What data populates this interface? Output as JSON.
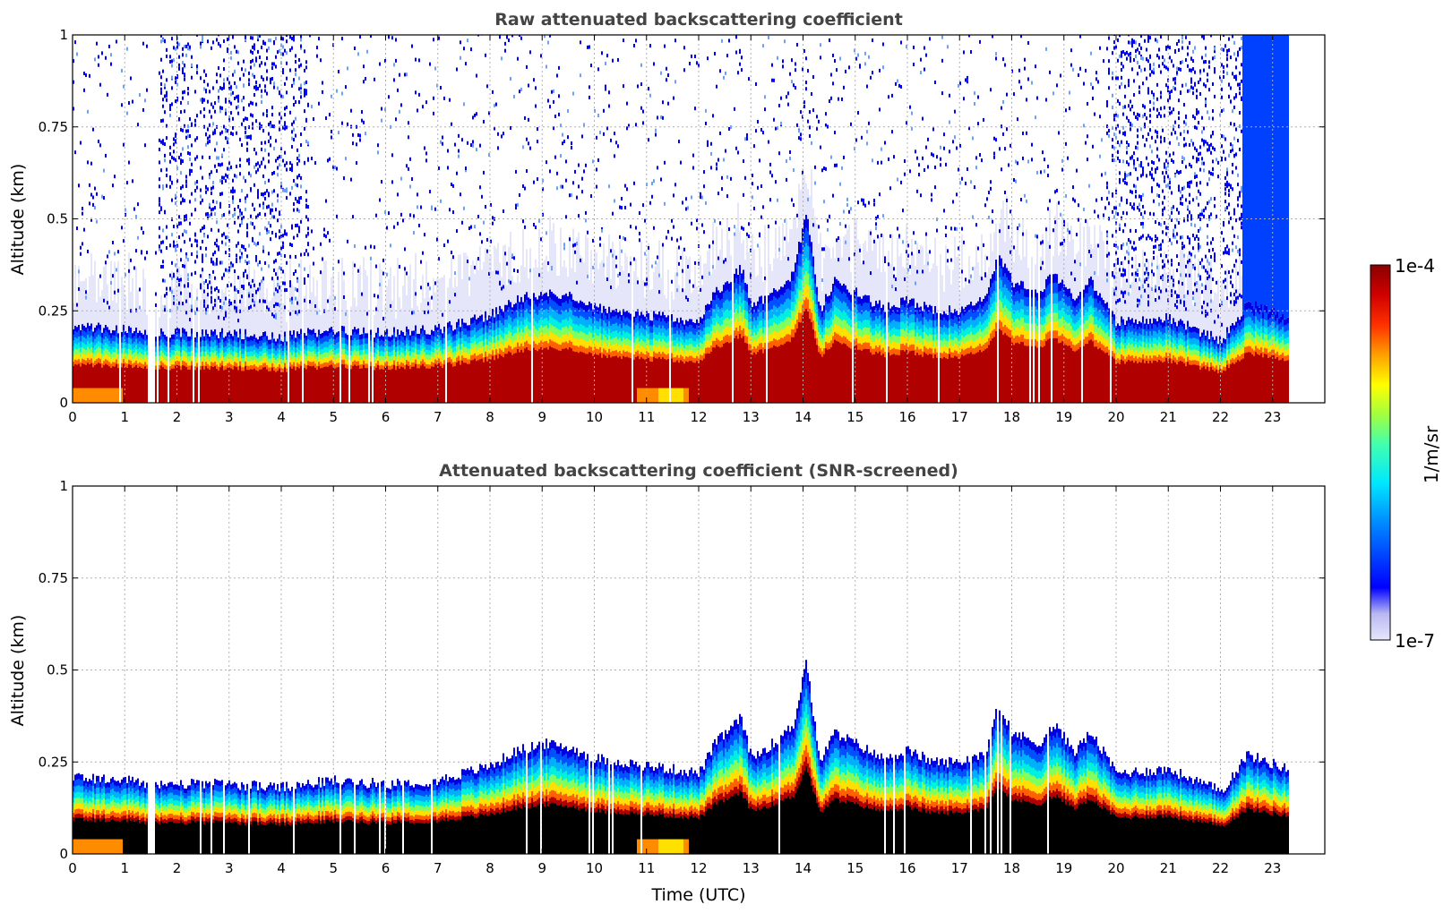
{
  "chart_data": [
    {
      "type": "heatmap",
      "title": "Raw attenuated backscattering coefficient",
      "xlabel": "",
      "ylabel": "Altitude (km)",
      "xlim": [
        0,
        24
      ],
      "ylim": [
        0,
        1
      ],
      "x_ticks": [
        "0",
        "1",
        "2",
        "3",
        "4",
        "5",
        "6",
        "7",
        "8",
        "9",
        "10",
        "11",
        "12",
        "13",
        "14",
        "15",
        "16",
        "17",
        "18",
        "19",
        "20",
        "21",
        "22",
        "23"
      ],
      "y_ticks": [
        "0",
        "0.25",
        "0.5",
        "0.75",
        "1"
      ],
      "grid": true,
      "data_end_hour": 23.3,
      "layer_top_km": [
        [
          0,
          0.21
        ],
        [
          1,
          0.2
        ],
        [
          1.5,
          0.19
        ],
        [
          2,
          0.19
        ],
        [
          3,
          0.19
        ],
        [
          4,
          0.18
        ],
        [
          5,
          0.2
        ],
        [
          6,
          0.19
        ],
        [
          7,
          0.2
        ],
        [
          8,
          0.24
        ],
        [
          8.5,
          0.28
        ],
        [
          9,
          0.3
        ],
        [
          9.5,
          0.29
        ],
        [
          10,
          0.26
        ],
        [
          11,
          0.24
        ],
        [
          12,
          0.22
        ],
        [
          12.3,
          0.3
        ],
        [
          12.8,
          0.37
        ],
        [
          13,
          0.26
        ],
        [
          13.5,
          0.31
        ],
        [
          13.8,
          0.35
        ],
        [
          14.05,
          0.53
        ],
        [
          14.3,
          0.25
        ],
        [
          14.6,
          0.33
        ],
        [
          15,
          0.3
        ],
        [
          15.5,
          0.26
        ],
        [
          16,
          0.28
        ],
        [
          16.5,
          0.25
        ],
        [
          17,
          0.25
        ],
        [
          17.5,
          0.28
        ],
        [
          17.7,
          0.4
        ],
        [
          18,
          0.33
        ],
        [
          18.5,
          0.3
        ],
        [
          18.8,
          0.35
        ],
        [
          19.2,
          0.28
        ],
        [
          19.5,
          0.33
        ],
        [
          20,
          0.22
        ],
        [
          21,
          0.23
        ],
        [
          22,
          0.17
        ],
        [
          22.5,
          0.27
        ],
        [
          23.3,
          0.23
        ]
      ],
      "noise_bands_hours": [
        [
          1.6,
          4.5
        ],
        [
          19.8,
          21.9
        ],
        [
          22.0,
          23.3
        ]
      ]
    },
    {
      "type": "heatmap",
      "title": "Attenuated backscattering coefficient (SNR-screened)",
      "xlabel": "Time (UTC)",
      "ylabel": "Altitude (km)",
      "xlim": [
        0,
        24
      ],
      "ylim": [
        0,
        1
      ],
      "x_ticks": [
        "0",
        "1",
        "2",
        "3",
        "4",
        "5",
        "6",
        "7",
        "8",
        "9",
        "10",
        "11",
        "12",
        "13",
        "14",
        "15",
        "16",
        "17",
        "18",
        "19",
        "20",
        "21",
        "22",
        "23"
      ],
      "y_ticks": [
        "0",
        "0.25",
        "0.5",
        "0.75",
        "1"
      ],
      "grid": true,
      "screened_fill": "#000000"
    }
  ],
  "colorbar": {
    "label": "1/m/sr",
    "max_label": "1e-4",
    "min_label": "1e-7",
    "colormap": [
      "#e6e6fa",
      "#c8c8f5",
      "#9696f0",
      "#0000ff",
      "#0060ff",
      "#00c0ff",
      "#00ffd0",
      "#60ff80",
      "#c0ff20",
      "#ffff00",
      "#ffc000",
      "#ff8000",
      "#ff3000",
      "#d00000",
      "#8b0000"
    ]
  }
}
